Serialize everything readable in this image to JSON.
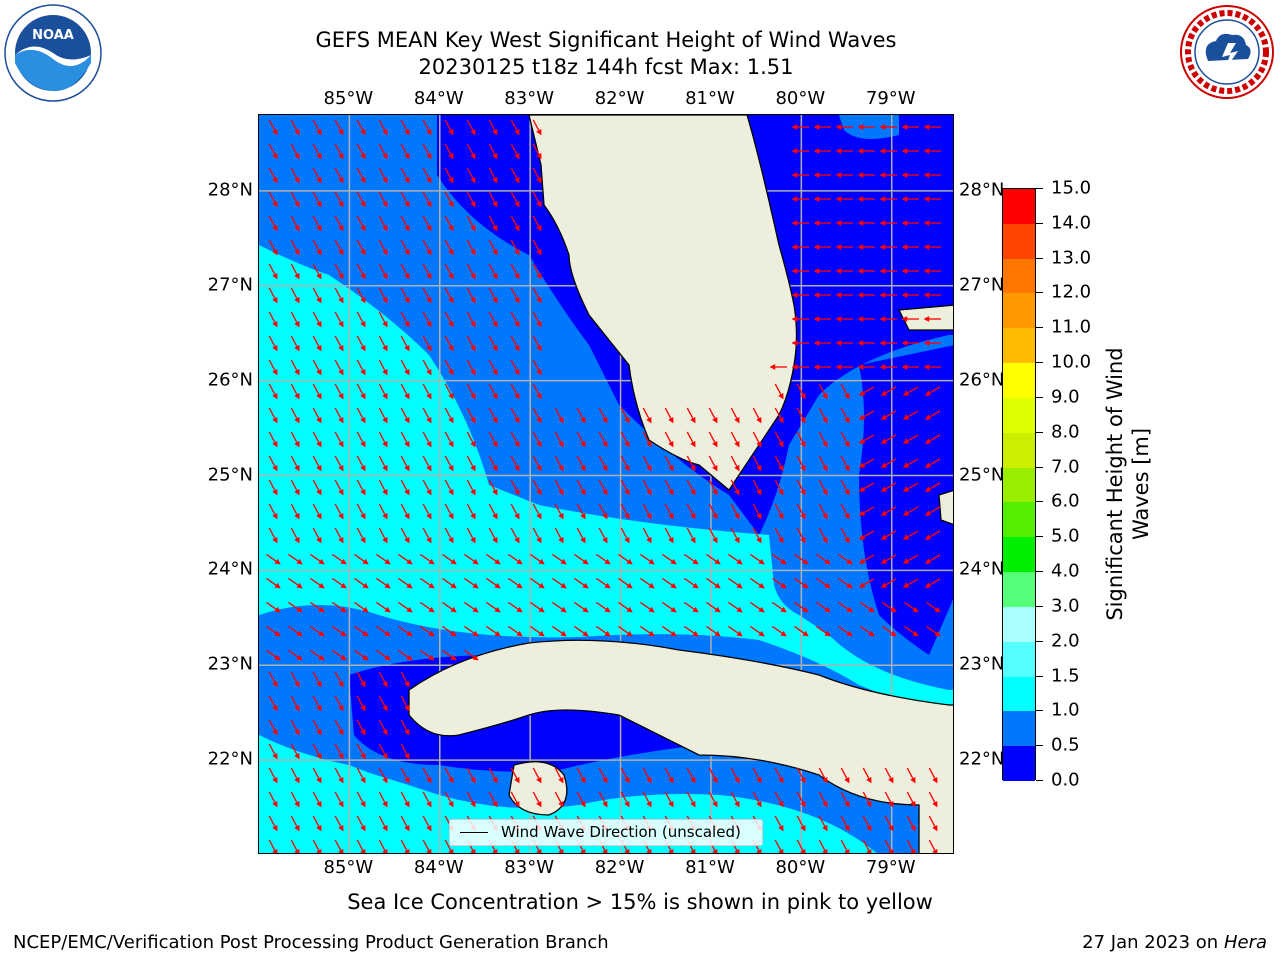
{
  "title": {
    "line1": "GEFS MEAN Key West Significant Height of Wind Waves",
    "line2": "20230125 t18z 144h fcst   Max: 1.51"
  },
  "logos": {
    "left": {
      "name": "NOAA",
      "text": "NOAA",
      "ring_text": "NATIONAL OCEANIC AND ATMOSPHERIC ADMINISTRATION · U.S. DEPARTMENT OF COMMERCE"
    },
    "right": {
      "name": "National Weather Service",
      "ring_text": "NATIONAL WEATHER SERVICE"
    }
  },
  "map": {
    "lon_labels": [
      "85°W",
      "84°W",
      "83°W",
      "82°W",
      "81°W",
      "80°W",
      "79°W"
    ],
    "lat_labels": [
      "28°N",
      "27°N",
      "26°N",
      "25°N",
      "24°N",
      "23°N",
      "22°N"
    ],
    "lon_values": [
      -85,
      -84,
      -83,
      -82,
      -81,
      -80,
      -79
    ],
    "lat_values": [
      28,
      27,
      26,
      25,
      24,
      23,
      22
    ],
    "extent": {
      "lon_min": -86.0,
      "lon_max": -78.3,
      "lat_min": 21.0,
      "lat_max": 28.8
    },
    "gridlines": true,
    "land_color": "#eeeedd",
    "arrow_color": "#ff0000",
    "legend_label": "Wind Wave Direction (unscaled)",
    "legend_position": "lower center",
    "wave_direction": "toward south-southeast over most of the domain, westward near the Bahamas"
  },
  "colorbar": {
    "label_line1": "Significant Height of Wind",
    "label_line2": "Waves [m]",
    "ticks": [
      "0.0",
      "0.5",
      "1.0",
      "1.5",
      "2.0",
      "3.0",
      "4.0",
      "5.0",
      "6.0",
      "7.0",
      "8.0",
      "9.0",
      "10.0",
      "11.0",
      "12.0",
      "13.0",
      "14.0",
      "15.0"
    ],
    "bins": [
      {
        "lo": "0.0",
        "hi": "0.5",
        "color": "#0000ff"
      },
      {
        "lo": "0.5",
        "hi": "1.0",
        "color": "#0077ff"
      },
      {
        "lo": "1.0",
        "hi": "1.5",
        "color": "#00ffff"
      },
      {
        "lo": "1.5",
        "hi": "2.0",
        "color": "#55ffff"
      },
      {
        "lo": "2.0",
        "hi": "3.0",
        "color": "#aaffff"
      },
      {
        "lo": "3.0",
        "hi": "4.0",
        "color": "#55ff77"
      },
      {
        "lo": "4.0",
        "hi": "5.0",
        "color": "#00ee00"
      },
      {
        "lo": "5.0",
        "hi": "6.0",
        "color": "#55ee00"
      },
      {
        "lo": "6.0",
        "hi": "7.0",
        "color": "#99ee00"
      },
      {
        "lo": "7.0",
        "hi": "8.0",
        "color": "#ccee00"
      },
      {
        "lo": "8.0",
        "hi": "9.0",
        "color": "#ddff00"
      },
      {
        "lo": "9.0",
        "hi": "10.0",
        "color": "#ffff00"
      },
      {
        "lo": "10.0",
        "hi": "11.0",
        "color": "#ffbb00"
      },
      {
        "lo": "11.0",
        "hi": "12.0",
        "color": "#ff9900"
      },
      {
        "lo": "12.0",
        "hi": "13.0",
        "color": "#ff7700"
      },
      {
        "lo": "13.0",
        "hi": "14.0",
        "color": "#ff4400"
      },
      {
        "lo": "14.0",
        "hi": "15.0",
        "color": "#ff0000"
      }
    ]
  },
  "footnote": "Sea Ice Concentration > 15% is shown in pink to yellow",
  "credit": "NCEP/EMC/Verification Post Processing Product Generation Branch",
  "stamp": {
    "date": "27 Jan 2023 on ",
    "host": "Hera"
  }
}
